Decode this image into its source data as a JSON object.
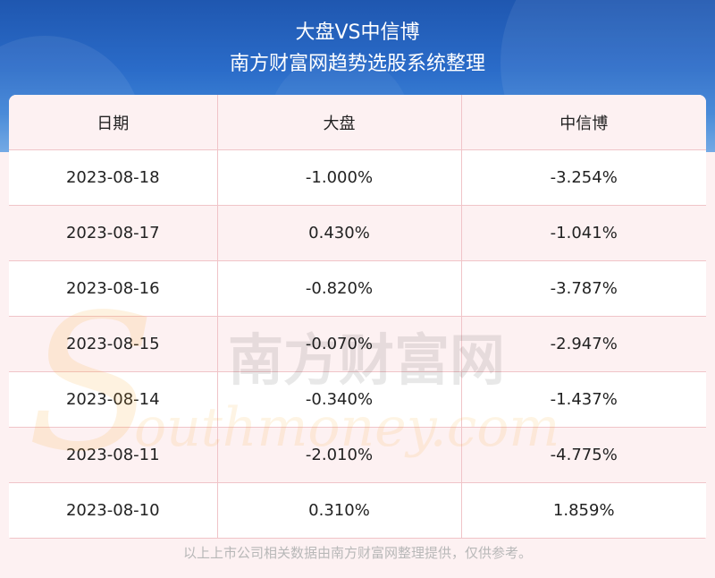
{
  "header": {
    "title": "大盘VS中信博",
    "subtitle": "南方财富网趋势选股系统整理"
  },
  "table": {
    "columns": [
      "日期",
      "大盘",
      "中信博"
    ],
    "rows": [
      [
        "2023-08-18",
        "-1.000%",
        "-3.254%"
      ],
      [
        "2023-08-17",
        "0.430%",
        "-1.041%"
      ],
      [
        "2023-08-16",
        "-0.820%",
        "-3.787%"
      ],
      [
        "2023-08-15",
        "-0.070%",
        "-2.947%"
      ],
      [
        "2023-08-14",
        "-0.340%",
        "-1.437%"
      ],
      [
        "2023-08-11",
        "-2.010%",
        "-4.775%"
      ],
      [
        "2023-08-10",
        "0.310%",
        "1.859%"
      ]
    ]
  },
  "watermark": {
    "cn": "南方财富网",
    "en": "Southmoney.com"
  },
  "footer": {
    "note": "以上上市公司相关数据由南方财富网整理提供，仅供参考。"
  },
  "colors": {
    "banner": "#2a6bc8",
    "grid": "#f0c4c8",
    "stripe": "#fdf1f2",
    "watermark_orange": "#f5a623"
  }
}
